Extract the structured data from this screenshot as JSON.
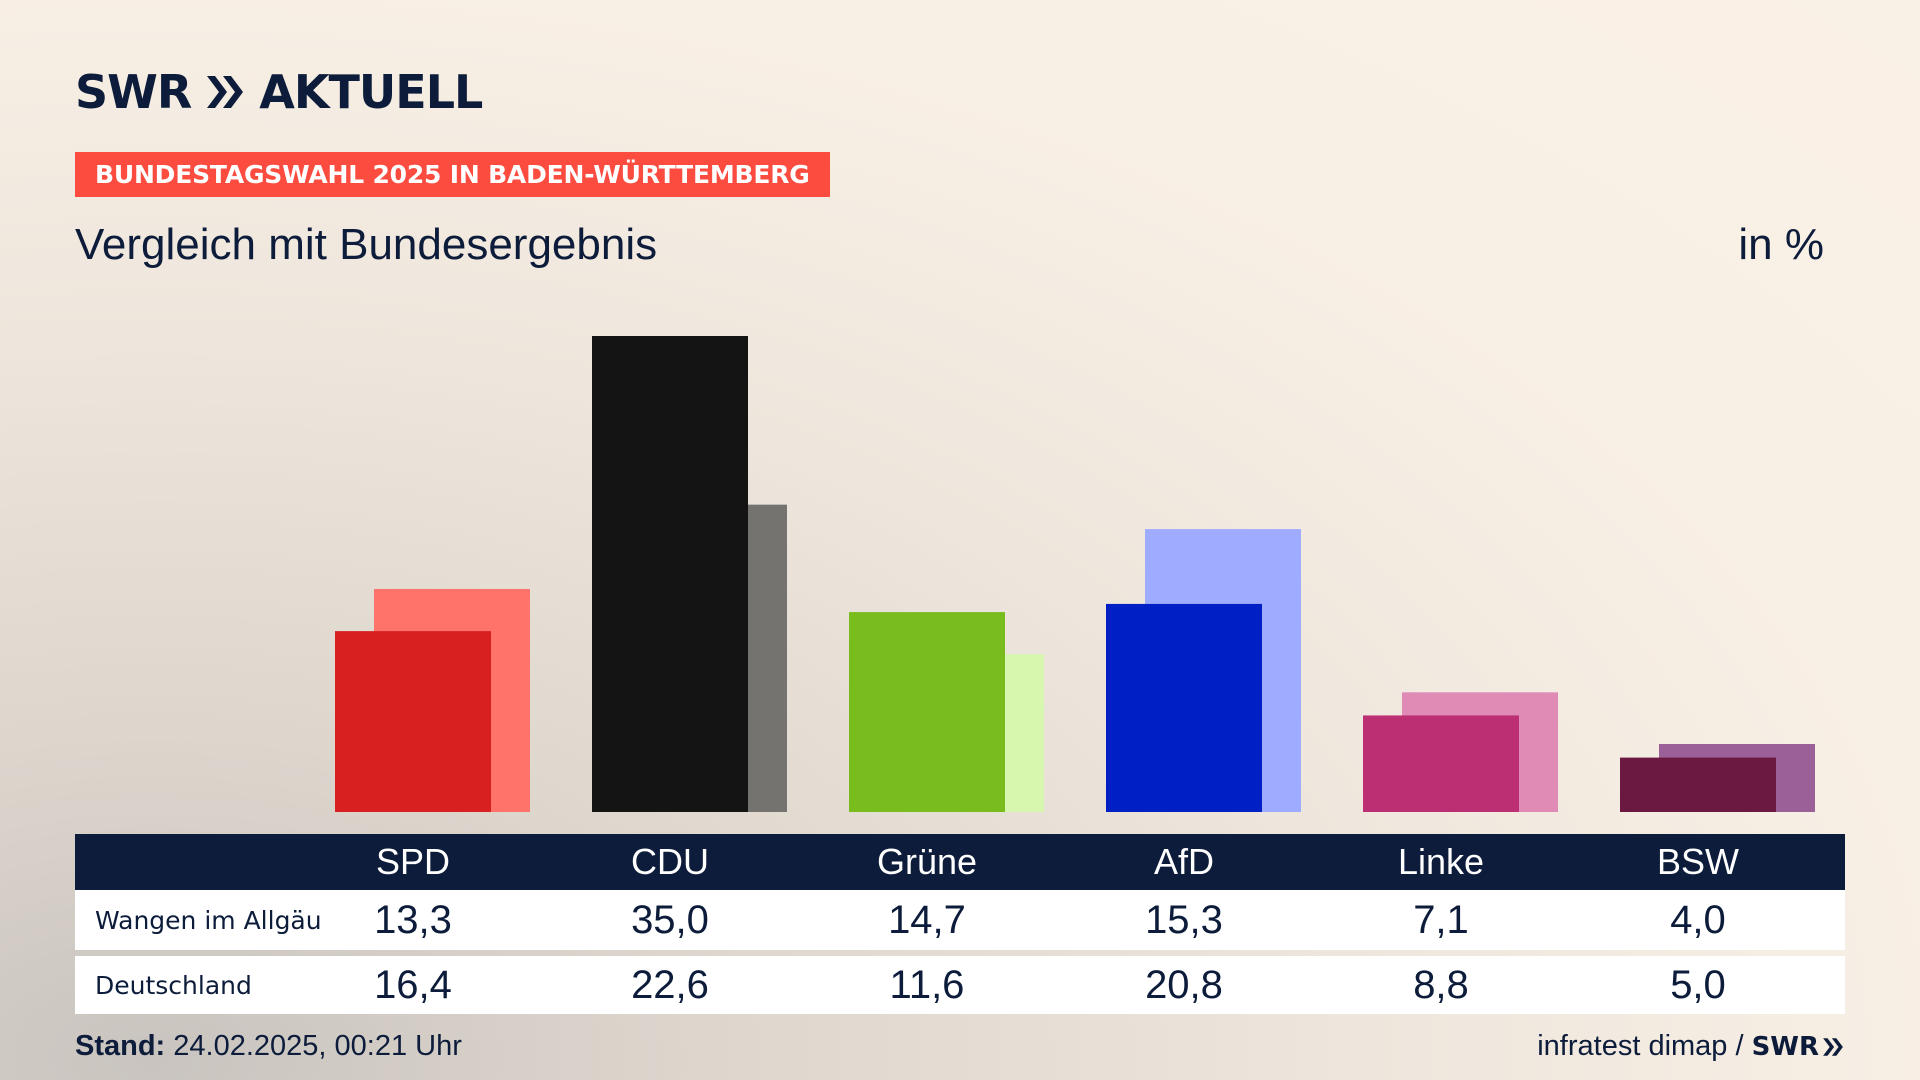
{
  "brand": {
    "swr": "SWR",
    "aktuell": "AKTUELL"
  },
  "kicker": "BUNDESTAGSWAHL 2025 IN BADEN-WÜRTTEMBERG",
  "title": "Vergleich mit Bundesergebnis",
  "unit": "in %",
  "colors": {
    "navy": "#0c1c3a",
    "kicker_bg": "#fc4b3f"
  },
  "chart_data": {
    "type": "bar",
    "categories": [
      "SPD",
      "CDU",
      "Grüne",
      "AfD",
      "Linke",
      "BSW"
    ],
    "series": [
      {
        "name": "Wangen im Allgäu",
        "values": [
          13.3,
          35.0,
          14.7,
          15.3,
          7.1,
          4.0
        ],
        "colors": [
          "#d82020",
          "#141414",
          "#79bc1d",
          "#0020c6",
          "#bd2f73",
          "#6b1940"
        ]
      },
      {
        "name": "Deutschland",
        "values": [
          16.4,
          22.6,
          11.6,
          20.8,
          8.8,
          5.0
        ],
        "colors": [
          "#ff736b",
          "#747370",
          "#d6f7ad",
          "#9eabff",
          "#e08bb6",
          "#9b6097"
        ]
      }
    ],
    "ylim": [
      0,
      35.0
    ],
    "grid": false,
    "legend": "none"
  },
  "table": {
    "rows": [
      {
        "label": "Wangen im Allgäu",
        "values": [
          "13,3",
          "35,0",
          "14,7",
          "15,3",
          "7,1",
          "4,0"
        ]
      },
      {
        "label": "Deutschland",
        "values": [
          "16,4",
          "22,6",
          "11,6",
          "20,8",
          "8,8",
          "5,0"
        ]
      }
    ]
  },
  "footer": {
    "stand_label": "Stand:",
    "stand_value": "24.02.2025, 00:21 Uhr",
    "source": "infratest dimap /",
    "source_brand": "SWR"
  }
}
